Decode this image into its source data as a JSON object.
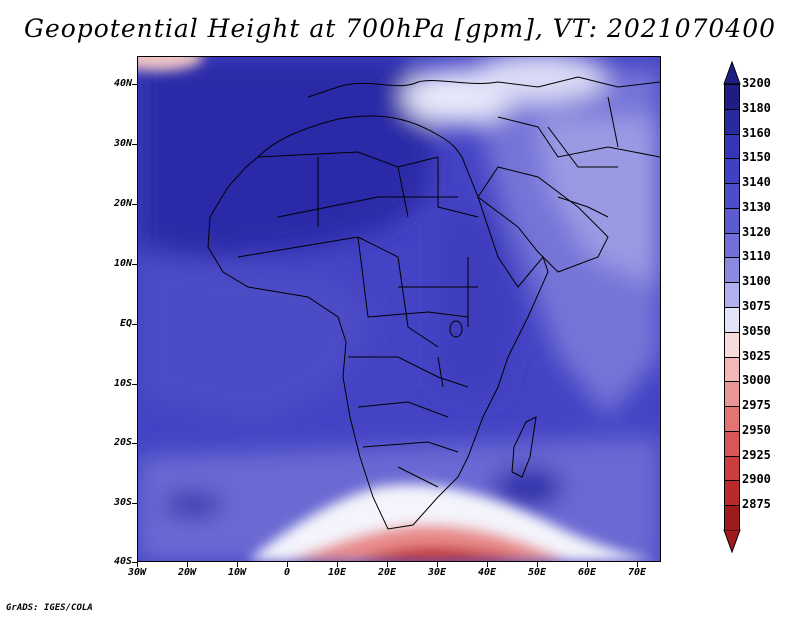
{
  "title": "Geopotential Height at 700hPa [gpm], VT: 2021070400",
  "credit": "GrADS: IGES/COLA",
  "map": {
    "lat_labels": [
      "40N",
      "30N",
      "20N",
      "10N",
      "EQ",
      "10S",
      "20S",
      "30S",
      "40S"
    ],
    "lon_labels": [
      "30W",
      "20W",
      "10W",
      "0",
      "10E",
      "20E",
      "30E",
      "40E",
      "50E",
      "60E",
      "70E"
    ],
    "region": "Africa",
    "lon_range": [
      -30,
      75
    ],
    "lat_range": [
      -40,
      44
    ]
  },
  "colorbar": {
    "levels": [
      "3200",
      "3180",
      "3160",
      "3150",
      "3140",
      "3130",
      "3120",
      "3110",
      "3100",
      "3075",
      "3050",
      "3025",
      "3000",
      "2975",
      "2950",
      "2925",
      "2900",
      "2875"
    ],
    "colors": [
      "#1e1e82",
      "#2a2aa0",
      "#3535b5",
      "#4040c2",
      "#4d4dc9",
      "#5c5cd0",
      "#7070d8",
      "#8a8ae0",
      "#b0b0ec",
      "#e4e4f8",
      "#f7dcdc",
      "#f2b8b8",
      "#ea9696",
      "#e27474",
      "#d85858",
      "#cc3e3e",
      "#bb2a2a",
      "#a01c1c"
    ]
  }
}
